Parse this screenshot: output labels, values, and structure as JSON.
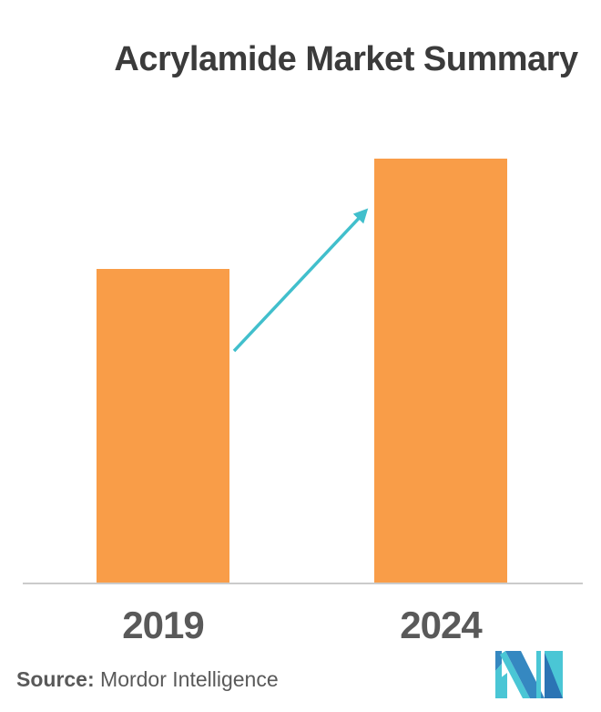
{
  "chart_data": {
    "type": "bar",
    "title": "Acrylamide Market Summary",
    "categories": [
      "2019",
      "2024"
    ],
    "values": [
      74,
      100
    ],
    "values_unit": "relative height (no numeric y-axis shown)",
    "xlabel": "",
    "ylabel": "",
    "y_axis_visible": false,
    "grid": false,
    "legend": "none",
    "bar_color": "#F99D48",
    "annotations": [
      {
        "type": "arrow",
        "from_category": "2019",
        "to_category": "2024",
        "direction": "up-right",
        "color": "#41BFCC"
      }
    ]
  },
  "footer": {
    "source_label": "Source:",
    "source_value": " Mordor Intelligence",
    "logo": "mordor-intelligence-mi-monogram"
  },
  "colors": {
    "background": "#FFFFFF",
    "bar_orange": "#F99D48",
    "arrow_teal": "#41BFCC",
    "axis_gray": "#CBCBCB",
    "title_gray": "#3B3B3B",
    "label_gray": "#595959",
    "logo_teal": "#4AC6D5",
    "logo_blue": "#3588C1",
    "logo_blue_dark": "#2B74B4"
  }
}
